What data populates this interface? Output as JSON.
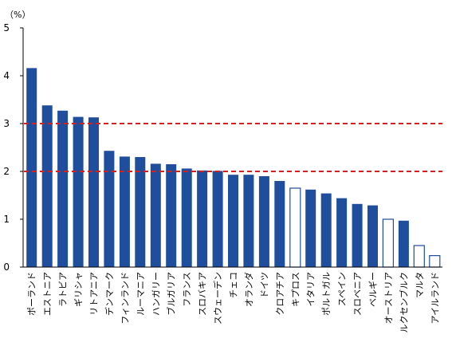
{
  "chart_data": {
    "type": "bar",
    "unit_label": "（%）",
    "ylim": [
      0,
      5
    ],
    "yticks": [
      0,
      1,
      2,
      3,
      4,
      5
    ],
    "grid": false,
    "reference_lines": [
      {
        "value": 3,
        "color": "#d42020",
        "style": "dashed"
      },
      {
        "value": 2,
        "color": "#d42020",
        "style": "dashed"
      }
    ],
    "bar_color": "#1f4e9c",
    "hollow_outline_color": "#1f4e9c",
    "categories": [
      "ポーランド",
      "エストニア",
      "ラトビア",
      "ギリシャ",
      "リトアニア",
      "デンマーク",
      "フィンランド",
      "ルーマニア",
      "ハンガリー",
      "ブルガリア",
      "フランス",
      "スロバキア",
      "スウェーデン",
      "チェコ",
      "オランダ",
      "ドイツ",
      "クロアチア",
      "キプロス",
      "イタリア",
      "ポルトガル",
      "スペイン",
      "スロベニア",
      "ベルギー",
      "オーストリア",
      "ルクセンブルク",
      "マルタ",
      "アイルランド"
    ],
    "values": [
      4.16,
      3.38,
      3.27,
      3.14,
      3.13,
      2.43,
      2.31,
      2.3,
      2.16,
      2.15,
      2.06,
      2.02,
      2.01,
      1.93,
      1.93,
      1.9,
      1.8,
      1.65,
      1.62,
      1.54,
      1.44,
      1.32,
      1.29,
      1.0,
      0.97,
      0.45,
      0.24
    ],
    "hollow": [
      false,
      false,
      false,
      false,
      false,
      false,
      false,
      false,
      false,
      false,
      false,
      false,
      false,
      false,
      false,
      false,
      false,
      true,
      false,
      false,
      false,
      false,
      false,
      true,
      false,
      true,
      true
    ]
  }
}
